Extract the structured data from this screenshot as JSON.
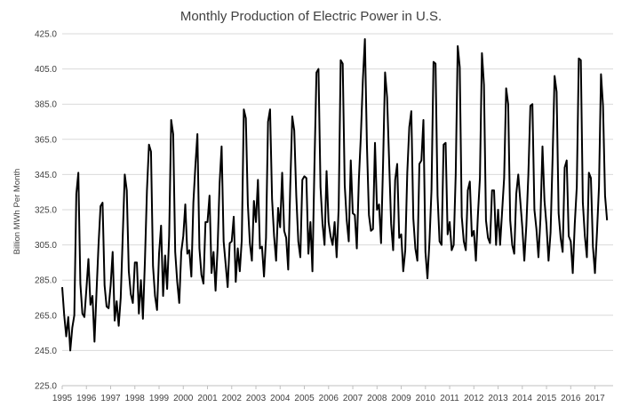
{
  "chart_data": {
    "type": "line",
    "title": "Monthly Production of Electric Power in U.S.",
    "xlabel": "",
    "ylabel": "Billion MWh Per Month",
    "ylim": [
      225,
      425
    ],
    "yticks": [
      "225.0",
      "245.0",
      "265.0",
      "285.0",
      "305.0",
      "325.0",
      "345.0",
      "365.0",
      "385.0",
      "405.0",
      "425.0"
    ],
    "xlim": [
      1995,
      2017.75
    ],
    "xticks": [
      "1995",
      "1996",
      "1997",
      "1998",
      "1999",
      "2000",
      "2001",
      "2002",
      "2003",
      "2004",
      "2005",
      "2006",
      "2007",
      "2008",
      "2009",
      "2010",
      "2011",
      "2012",
      "2013",
      "2014",
      "2015",
      "2016",
      "2017"
    ],
    "grid": "horizontal",
    "legend": "none",
    "series": [
      {
        "color": "#000000",
        "start": "1995-01",
        "frequency": "monthly",
        "values": [
          281,
          265,
          253,
          264,
          245,
          258,
          265,
          334,
          346,
          283,
          266,
          264,
          280,
          297,
          271,
          276,
          250,
          278,
          305,
          327,
          329,
          282,
          270,
          269,
          282,
          301,
          262,
          273,
          259,
          275,
          310,
          345,
          336,
          290,
          277,
          272,
          295,
          295,
          266,
          285,
          263,
          296,
          336,
          362,
          358,
          293,
          276,
          268,
          300,
          316,
          276,
          299,
          280,
          310,
          376,
          368,
          301,
          284,
          272,
          301,
          310,
          328,
          300,
          302,
          287,
          329,
          350,
          368,
          303,
          288,
          283,
          318,
          318,
          333,
          289,
          301,
          279,
          303,
          340,
          361,
          307,
          294,
          281,
          306,
          307,
          321,
          284,
          303,
          290,
          308,
          382,
          377,
          328,
          306,
          296,
          330,
          318,
          342,
          303,
          304,
          287,
          309,
          375,
          382,
          331,
          310,
          296,
          326,
          315,
          346,
          313,
          309,
          291,
          338,
          378,
          370,
          333,
          307,
          298,
          342,
          344,
          343,
          300,
          318,
          290,
          350,
          403,
          405,
          338,
          317,
          305,
          347,
          318,
          310,
          305,
          318,
          298,
          326,
          410,
          408,
          339,
          319,
          307,
          353,
          323,
          322,
          303,
          342,
          367,
          399,
          422,
          362,
          322,
          313,
          314,
          363,
          325,
          328,
          306,
          351,
          403,
          389,
          353,
          317,
          302,
          342,
          351,
          309,
          311,
          290,
          302,
          346,
          372,
          381,
          320,
          303,
          296,
          351,
          353,
          376,
          301,
          286,
          307,
          336,
          409,
          408,
          333,
          307,
          305,
          362,
          363,
          311,
          318,
          302,
          305,
          345,
          418,
          406,
          321,
          307,
          302,
          336,
          341,
          310,
          313,
          296,
          322,
          343,
          414,
          396,
          319,
          309,
          306,
          336,
          336,
          305,
          325,
          305,
          324,
          343,
          394,
          385,
          319,
          305,
          300,
          334,
          345,
          330,
          315,
          296,
          316,
          345,
          384,
          385,
          325,
          314,
          298,
          320,
          361,
          330,
          316,
          296,
          312,
          354,
          401,
          392,
          323,
          309,
          301,
          349,
          353,
          310,
          307,
          289,
          317,
          338,
          411,
          410,
          329,
          310,
          298,
          346,
          343,
          304,
          289,
          312,
          338,
          402,
          384,
          333,
          319
        ]
      }
    ]
  }
}
